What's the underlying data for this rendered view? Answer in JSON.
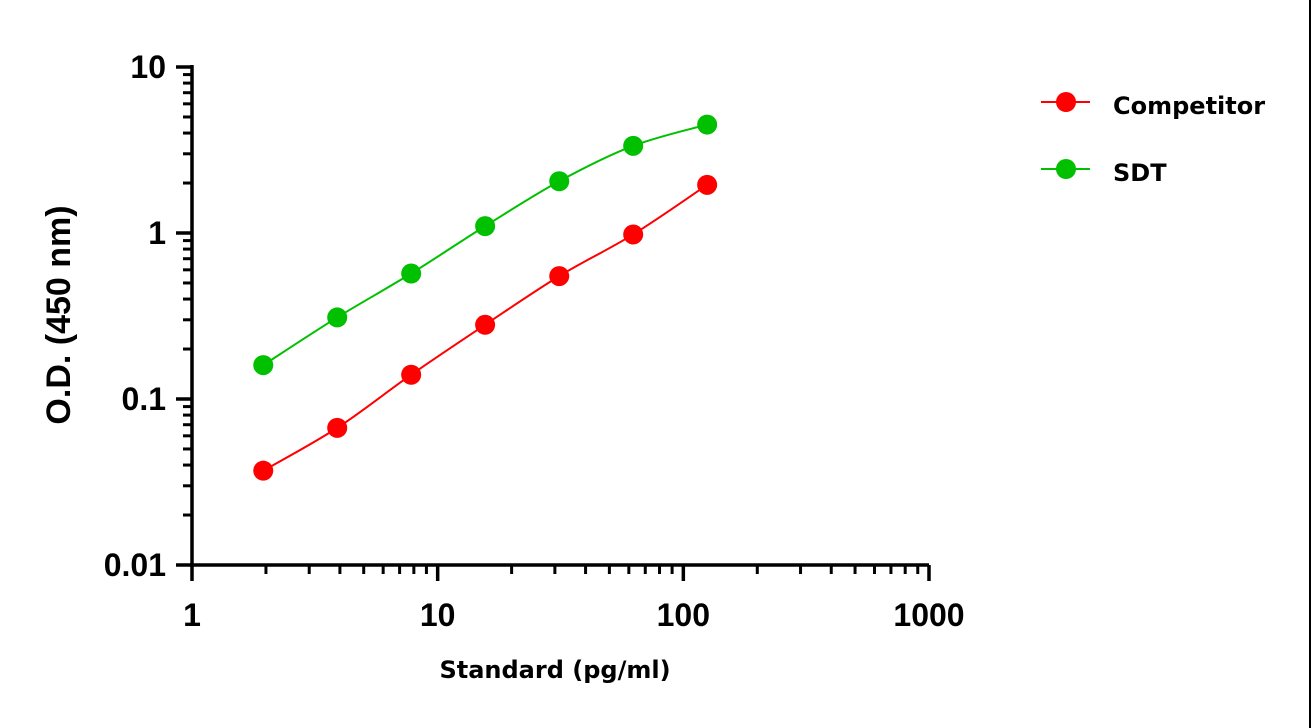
{
  "chart_data": {
    "type": "line",
    "title": "",
    "xlabel": "Standard (pg/ml)",
    "ylabel": "O.D. (450 nm)",
    "x_scale": "log",
    "y_scale": "log",
    "xlim": [
      1,
      1000
    ],
    "ylim": [
      0.01,
      10
    ],
    "x_ticks": [
      {
        "value": 1,
        "label": "1"
      },
      {
        "value": 10,
        "label": "10"
      },
      {
        "value": 100,
        "label": "100"
      },
      {
        "value": 1000,
        "label": "1000"
      }
    ],
    "y_ticks": [
      {
        "value": 0.01,
        "label": "0.01"
      },
      {
        "value": 0.1,
        "label": "0.1"
      },
      {
        "value": 1,
        "label": "1"
      },
      {
        "value": 10,
        "label": "10"
      }
    ],
    "grid": false,
    "legend_position": "top-right",
    "series": [
      {
        "name": "Competitor",
        "color": "#ff0000",
        "x": [
          1.95,
          3.9,
          7.8,
          15.6,
          31.25,
          62.5,
          125
        ],
        "y": [
          0.037,
          0.067,
          0.14,
          0.28,
          0.55,
          0.98,
          1.95
        ]
      },
      {
        "name": "SDT",
        "color": "#00c000",
        "x": [
          1.95,
          3.9,
          7.8,
          15.6,
          31.25,
          62.5,
          125
        ],
        "y": [
          0.16,
          0.31,
          0.57,
          1.1,
          2.05,
          3.35,
          4.5
        ]
      }
    ]
  }
}
